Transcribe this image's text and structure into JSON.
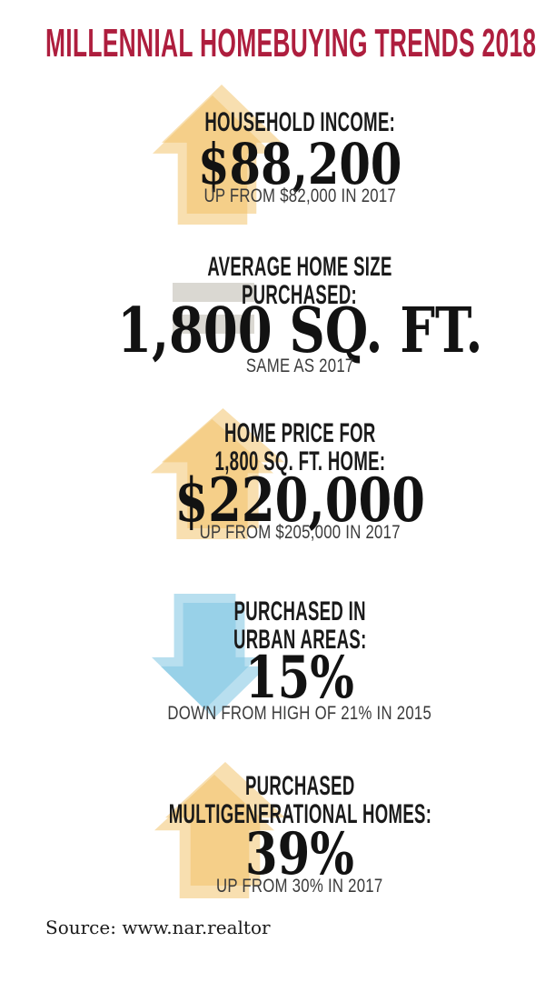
{
  "title": "MILLENNIAL HOMEBUYING TRENDS 2018",
  "source": "Source: www.nar.realtor",
  "colors": {
    "title_red": "#ae1e3e",
    "up_arrow_orange": "#f5d089",
    "down_arrow_blue": "#b7def0",
    "equals_gray": "#dad8d2",
    "heading_black": "#1a1a1a",
    "note_gray": "#3b3b3b",
    "background": "#ffffff"
  },
  "stats": [
    {
      "icon": "up-arrow",
      "label_lines": [
        "HOUSEHOLD INCOME:"
      ],
      "value": "$88,200",
      "note": "UP FROM $82,000 IN 2017"
    },
    {
      "icon": "equals",
      "label_lines": [
        "AVERAGE HOME SIZE",
        "PURCHASED:"
      ],
      "value": "1,800 SQ. FT.",
      "note": "SAME AS 2017"
    },
    {
      "icon": "up-arrow",
      "label_lines": [
        "HOME PRICE FOR",
        "1,800 SQ. FT. HOME:"
      ],
      "value": "$220,000",
      "note": "UP FROM $205,000 IN 2017"
    },
    {
      "icon": "down-arrow",
      "label_lines": [
        "PURCHASED IN",
        "URBAN AREAS:"
      ],
      "value": "15%",
      "note": "DOWN FROM HIGH OF 21% IN 2015"
    },
    {
      "icon": "up-arrow",
      "label_lines": [
        "PURCHASED",
        "MULTIGENERATIONAL HOMES:"
      ],
      "value": "39%",
      "note": "UP FROM 30% IN 2017"
    }
  ],
  "chart_data": {
    "type": "table",
    "title": "MILLENNIAL HOMEBUYING TRENDS 2018",
    "columns": [
      "metric",
      "value_2018",
      "comparison",
      "trend"
    ],
    "rows": [
      {
        "metric": "Household income",
        "value_2018": "$88,200",
        "comparison": "Up from $82,000 in 2017",
        "trend": "up"
      },
      {
        "metric": "Average home size purchased",
        "value_2018": "1,800 sq. ft.",
        "comparison": "Same as 2017",
        "trend": "same"
      },
      {
        "metric": "Home price for 1,800 sq. ft. home",
        "value_2018": "$220,000",
        "comparison": "Up from $205,000 in 2017",
        "trend": "up"
      },
      {
        "metric": "Purchased in urban areas",
        "value_2018": "15%",
        "comparison": "Down from high of 21% in 2015",
        "trend": "down"
      },
      {
        "metric": "Purchased multigenerational homes",
        "value_2018": "39%",
        "comparison": "Up from 30% in 2017",
        "trend": "up"
      }
    ],
    "source": "www.nar.realtor"
  }
}
